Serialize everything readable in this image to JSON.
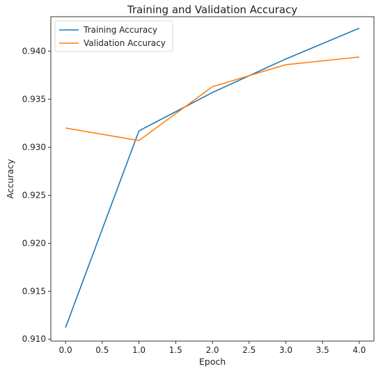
{
  "chart_data": {
    "type": "line",
    "title": "Training and Validation Accuracy",
    "xlabel": "Epoch",
    "ylabel": "Accuracy",
    "xlim": [
      -0.2,
      4.2
    ],
    "ylim": [
      0.9098,
      0.9436
    ],
    "x": [
      0,
      1,
      2,
      3,
      4
    ],
    "xticks": [
      0.0,
      0.5,
      1.0,
      1.5,
      2.0,
      2.5,
      3.0,
      3.5,
      4.0
    ],
    "xtick_labels": [
      "0.0",
      "0.5",
      "1.0",
      "1.5",
      "2.0",
      "2.5",
      "3.0",
      "3.5",
      "4.0"
    ],
    "yticks": [
      0.91,
      0.915,
      0.92,
      0.925,
      0.93,
      0.935,
      0.94
    ],
    "ytick_labels": [
      "0.910",
      "0.915",
      "0.920",
      "0.925",
      "0.930",
      "0.935",
      "0.940"
    ],
    "grid": false,
    "legend_position": "upper-left",
    "series": [
      {
        "name": "Training Accuracy",
        "color": "#1f77b4",
        "values": [
          0.9112,
          0.9317,
          0.9357,
          0.9392,
          0.9424
        ]
      },
      {
        "name": "Validation Accuracy",
        "color": "#ff7f0e",
        "values": [
          0.932,
          0.9307,
          0.9363,
          0.9386,
          0.9394
        ]
      }
    ]
  }
}
